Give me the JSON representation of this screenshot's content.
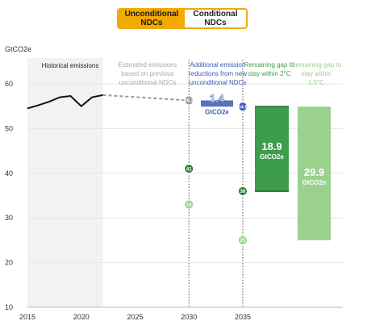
{
  "toggle": {
    "unconditional_label": "Unconditional NDCs",
    "conditional_label": "Conditional NDCs",
    "selected": "Unconditional NDCs"
  },
  "colors": {
    "accent": "#f2a900",
    "historical": "#111111",
    "estimated": "#999999",
    "reduction": "#3a5bb0",
    "gap_2c": "#3d9d4d",
    "gap_15c": "#9ad18f"
  },
  "chart_data": {
    "type": "line",
    "ylabel": "GtCO2e",
    "ylim": [
      10,
      63
    ],
    "xlim": [
      2015,
      2044
    ],
    "y_ticks": [
      10,
      20,
      30,
      40,
      50,
      60
    ],
    "x_ticks": [
      2015,
      2020,
      2025,
      2030,
      2035
    ],
    "grid": true,
    "historical": {
      "label": "Historical emissions",
      "x": [
        2015,
        2016,
        2017,
        2018,
        2019,
        2020,
        2021,
        2022
      ],
      "y": [
        54.5,
        55.2,
        56.0,
        57.0,
        57.3,
        55.0,
        57.0,
        57.5
      ]
    },
    "estimated": {
      "label": "Estimated emissions based on previous unconditional NDCs",
      "x": [
        2022,
        2030
      ],
      "y": [
        57.5,
        56.3
      ]
    },
    "reduction": {
      "label": "Additional emission reductions from new unconditional NDCs",
      "value": "1.4",
      "unit": "GtCO2e",
      "from": 56.3,
      "to": 54.9
    },
    "gap_2c": {
      "label": "Remaining gap to stay within 2°C",
      "value": "18.9",
      "unit": "GtCO2e",
      "from": 54.9,
      "to": 36
    },
    "gap_15c": {
      "label": "Remaining gap to stay within 1.5°C",
      "value": "29.9",
      "unit": "GtCO2e",
      "from": 54.9,
      "to": 25
    },
    "points": [
      {
        "x": 2030,
        "y": 56.3,
        "label": "56.3",
        "kind": "estimated"
      },
      {
        "x": 2035,
        "y": 54.9,
        "label": "54.9",
        "kind": "reduction"
      },
      {
        "x": 2030,
        "y": 41,
        "label": "41",
        "kind": "gap_2c"
      },
      {
        "x": 2030,
        "y": 33,
        "label": "33",
        "kind": "gap_15c"
      },
      {
        "x": 2035,
        "y": 36,
        "label": "36",
        "kind": "gap_2c"
      },
      {
        "x": 2035,
        "y": 25,
        "label": "25",
        "kind": "gap_15c"
      }
    ]
  }
}
